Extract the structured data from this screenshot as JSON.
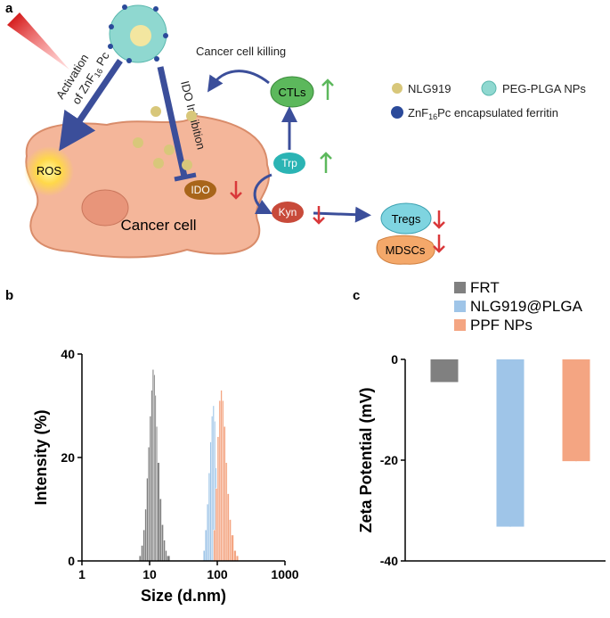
{
  "diagram": {
    "panel_labels": [
      "a",
      "b",
      "c"
    ],
    "activation": [
      "Activation",
      "of ZnF",
      "16",
      " Pc"
    ],
    "ido_inhibition": "IDO Inhibition",
    "cancer_cell_killing": "Cancer cell killing",
    "cancer_cell": "Cancer cell",
    "nodes": {
      "ros": "ROS",
      "ido": "IDO",
      "trp": "Trp",
      "kyn": "Kyn",
      "ctls": "CTLs",
      "tregs": "Tregs",
      "mdscs": "MDSCs"
    },
    "legend": {
      "nlg919": "NLG919",
      "peg_plga": "PEG-PLGA NPs",
      "ferritin": [
        "ZnF",
        "16",
        "Pc encapsulated ferritin"
      ]
    }
  },
  "chart_data": [
    {
      "type": "histogram",
      "x_label": "Size (d.nm)",
      "y_label": "Intensity (%)",
      "xscale": "log",
      "xlim": [
        1,
        1000
      ],
      "xticks": [
        1,
        10,
        100,
        1000
      ],
      "ylim": [
        0,
        40
      ],
      "yticks": [
        0,
        20,
        40
      ],
      "series": [
        {
          "color": "#808080",
          "bins": [
            7,
            7.5,
            8,
            8.5,
            9,
            9.5,
            10,
            10.5,
            11,
            11.5,
            12,
            12.5,
            13,
            14,
            15,
            16,
            17,
            18,
            20
          ],
          "values": [
            1,
            3,
            6,
            10,
            16,
            22,
            28,
            33,
            37,
            36,
            32,
            26,
            19,
            12,
            7,
            4,
            2,
            1
          ]
        },
        {
          "color": "#9fc5e8",
          "bins": [
            62,
            66,
            70,
            74,
            78,
            82,
            86,
            90,
            94,
            98,
            102
          ],
          "values": [
            2,
            6,
            11,
            17,
            23,
            28,
            30,
            27,
            18,
            8
          ]
        },
        {
          "color": "#f4a582",
          "bins": [
            88,
            94,
            100,
            106,
            112,
            118,
            124,
            132,
            140,
            150,
            160,
            175,
            190,
            205
          ],
          "values": [
            6,
            14,
            24,
            31,
            33,
            31,
            26,
            19,
            13,
            8,
            5,
            2,
            1
          ]
        }
      ]
    },
    {
      "type": "bar",
      "y_label": "Zeta Potential (mV)",
      "ylim": [
        -40,
        0
      ],
      "yticks": [
        0,
        -20,
        -40
      ],
      "legend": "top",
      "series": [
        {
          "name": "FRT",
          "color": "#808080",
          "values": [
            -4.5
          ]
        },
        {
          "name": "NLG919@PLGA",
          "color": "#9fc5e8",
          "values": [
            -33.2
          ],
          "errors": [
            1
          ]
        },
        {
          "name": "PPF NPs",
          "color": "#f4a582",
          "values": [
            -20.2
          ],
          "errors": [
            1.8
          ]
        }
      ]
    }
  ]
}
